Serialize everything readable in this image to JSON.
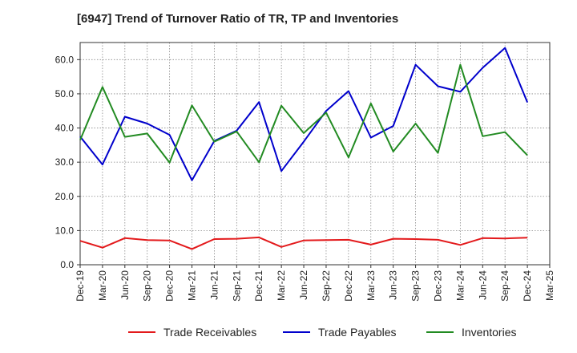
{
  "chart_data": {
    "type": "line",
    "title": "[6947]  Trend of Turnover Ratio of TR, TP and Inventories",
    "xlabel": "",
    "ylabel": "",
    "x": [
      "Dec-19",
      "Mar-20",
      "Jun-20",
      "Sep-20",
      "Dec-20",
      "Mar-21",
      "Jun-21",
      "Sep-21",
      "Dec-21",
      "Mar-22",
      "Jun-22",
      "Sep-22",
      "Dec-22",
      "Mar-23",
      "Jun-23",
      "Sep-23",
      "Dec-23",
      "Mar-24",
      "Jun-24",
      "Sep-24",
      "Dec-24"
    ],
    "tick_labels": [
      "Dec-19",
      "Mar-20",
      "Jun-20",
      "Sep-20",
      "Dec-20",
      "Mar-21",
      "Jun-21",
      "Sep-21",
      "Dec-21",
      "Mar-22",
      "Jun-22",
      "Sep-22",
      "Dec-22",
      "Mar-23",
      "Jun-23",
      "Sep-23",
      "Dec-23",
      "Mar-24",
      "Jun-24",
      "Sep-24",
      "Dec-24",
      "Mar-25"
    ],
    "y_ticks": [
      "0.0",
      "10.0",
      "20.0",
      "30.0",
      "40.0",
      "50.0",
      "60.0"
    ],
    "ylim": [
      0,
      65
    ],
    "grid": true,
    "legend_position": "bottom",
    "series": [
      {
        "name": "Trade Receivables",
        "color": "#e31a1c",
        "values": [
          7.0,
          5.0,
          7.8,
          7.2,
          7.1,
          4.6,
          7.5,
          7.6,
          8.0,
          5.2,
          7.1,
          7.2,
          7.3,
          5.9,
          7.6,
          7.5,
          7.3,
          5.8,
          7.8,
          7.7,
          7.9
        ]
      },
      {
        "name": "Trade Payables",
        "color": "#0000cc",
        "values": [
          37.5,
          29.3,
          43.3,
          41.3,
          38.0,
          24.7,
          36.2,
          39.2,
          47.6,
          27.4,
          36.0,
          45.0,
          50.8,
          37.2,
          40.6,
          58.5,
          52.2,
          50.6,
          57.6,
          63.4,
          47.5
        ]
      },
      {
        "name": "Inventories",
        "color": "#228b22",
        "values": [
          36.5,
          52.0,
          37.4,
          38.4,
          29.9,
          46.6,
          36.0,
          39.0,
          30.0,
          46.5,
          38.5,
          44.5,
          31.4,
          47.2,
          33.1,
          41.3,
          32.7,
          58.5,
          37.6,
          38.8,
          32.0
        ]
      }
    ]
  }
}
